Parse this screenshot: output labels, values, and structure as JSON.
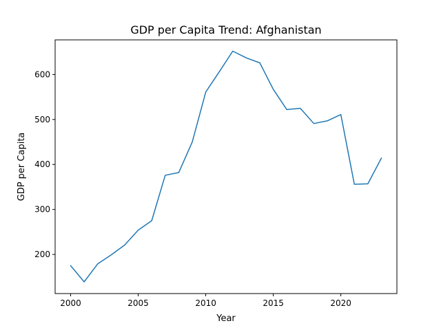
{
  "chart_data": {
    "type": "line",
    "title": "GDP per Capita Trend: Afghanistan",
    "xlabel": "Year",
    "ylabel": "GDP per Capita",
    "xlim": [
      1998.85,
      2024.15
    ],
    "ylim": [
      113,
      677
    ],
    "xticks": [
      2000,
      2005,
      2010,
      2015,
      2020
    ],
    "yticks": [
      200,
      300,
      400,
      500,
      600
    ],
    "grid": false,
    "legend": "none",
    "series": [
      {
        "color": "#1f77b4",
        "x": [
          2000,
          2001,
          2002,
          2003,
          2004,
          2005,
          2006,
          2007,
          2008,
          2009,
          2010,
          2011,
          2012,
          2013,
          2014,
          2015,
          2016,
          2017,
          2018,
          2019,
          2020,
          2021,
          2022,
          2023
        ],
        "values": [
          175,
          139,
          179,
          199,
          221,
          254,
          275,
          376,
          382,
          450,
          561,
          606,
          652,
          637,
          626,
          567,
          522,
          525,
          491,
          497,
          511,
          356,
          357,
          414
        ]
      }
    ]
  }
}
